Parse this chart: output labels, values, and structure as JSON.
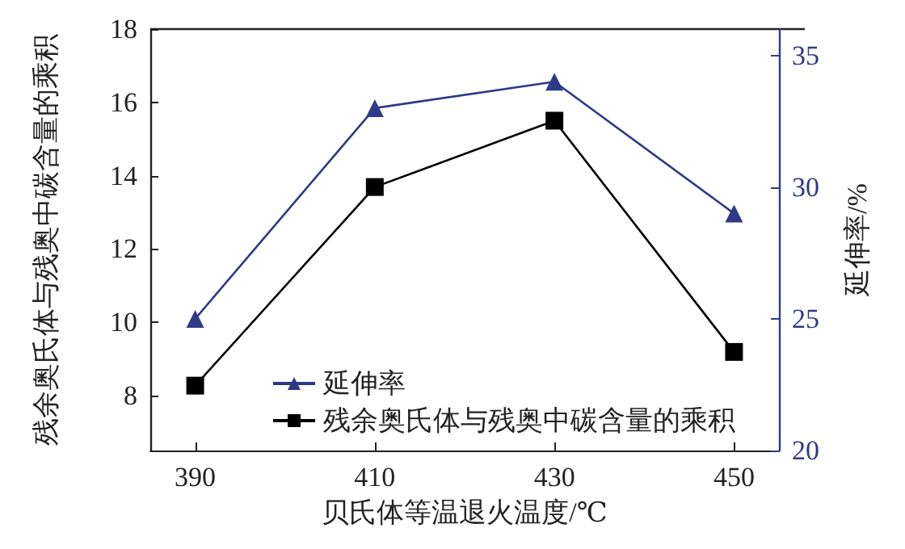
{
  "chart_data": {
    "type": "line",
    "xlabel": "贝氏体等温退火温度/℃",
    "ylabel": "残余奥氏体与残奥中碳含量的乘积",
    "y2label": "延伸率/%",
    "x": [
      390,
      410,
      430,
      450
    ],
    "xlim": [
      385,
      455
    ],
    "xticks": [
      390,
      410,
      430,
      450
    ],
    "ylim": [
      6.5,
      18
    ],
    "yticks": [
      8,
      10,
      12,
      14,
      16,
      18
    ],
    "y2lim": [
      20,
      36
    ],
    "y2ticks": [
      20,
      25,
      30,
      35
    ],
    "series": [
      {
        "name": "延伸率",
        "color": "#2e3a87",
        "values": [
          25.0,
          33.0,
          34.0,
          29.0
        ],
        "axis": "y2",
        "marker": "triangle"
      },
      {
        "name": "残余奥氏体与残奥中碳含量的乘积",
        "color": "#000000",
        "values": [
          8.27,
          13.69,
          15.5,
          9.19
        ],
        "marker": "square"
      }
    ],
    "legend": "bottom right",
    "grid": false,
    "line_style": "solid"
  }
}
